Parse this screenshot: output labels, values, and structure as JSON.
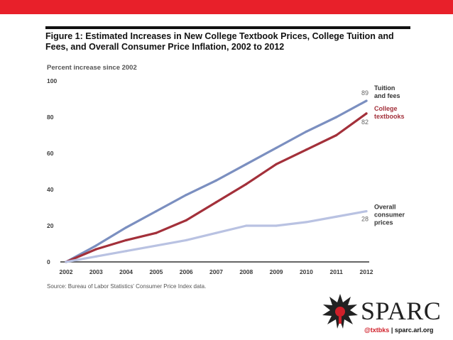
{
  "figure": {
    "title": "Figure 1: Estimated Increases in New College Textbook Prices, College Tuition and Fees, and Overall Consumer Price Inflation, 2002 to 2012",
    "source": "Source: Bureau of Labor Statistics' Consumer Price Index data."
  },
  "branding": {
    "logo_text": "SPARC",
    "twitter": "@txtbks",
    "separator": "|",
    "site": "sparc.arl.org",
    "accent_color": "#e8202a"
  },
  "chart_data": {
    "type": "line",
    "title": "Figure 1: Estimated Increases in New College Textbook Prices, College Tuition and Fees, and Overall Consumer Price Inflation, 2002 to 2012",
    "ylabel": "Percent increase since 2002",
    "xlabel": "",
    "ylim": [
      0,
      100
    ],
    "yticks": [
      0,
      20,
      40,
      60,
      80,
      100
    ],
    "x": [
      "2002",
      "2003",
      "2004",
      "2005",
      "2006",
      "2007",
      "2008",
      "2009",
      "2010",
      "2011",
      "2012"
    ],
    "grid": false,
    "legend": "inline-right",
    "series": [
      {
        "name": "Tuition and fees",
        "label_lines": [
          "Tuition",
          "and fees"
        ],
        "end_label": "89",
        "color": "#7b8fc0",
        "values": [
          0,
          9,
          19,
          28,
          37,
          45,
          54,
          63,
          72,
          80,
          89
        ]
      },
      {
        "name": "College textbooks",
        "label_lines": [
          "College",
          "textbooks"
        ],
        "end_label": "82",
        "color": "#a3303a",
        "values": [
          0,
          7,
          12,
          16,
          23,
          33,
          43,
          54,
          62,
          70,
          82
        ]
      },
      {
        "name": "Overall consumer prices",
        "label_lines": [
          "Overall",
          "consumer",
          "prices"
        ],
        "end_label": "28",
        "color": "#b9c2e2",
        "values": [
          0,
          3,
          6,
          9,
          12,
          16,
          20,
          20,
          22,
          25,
          28
        ]
      }
    ]
  }
}
